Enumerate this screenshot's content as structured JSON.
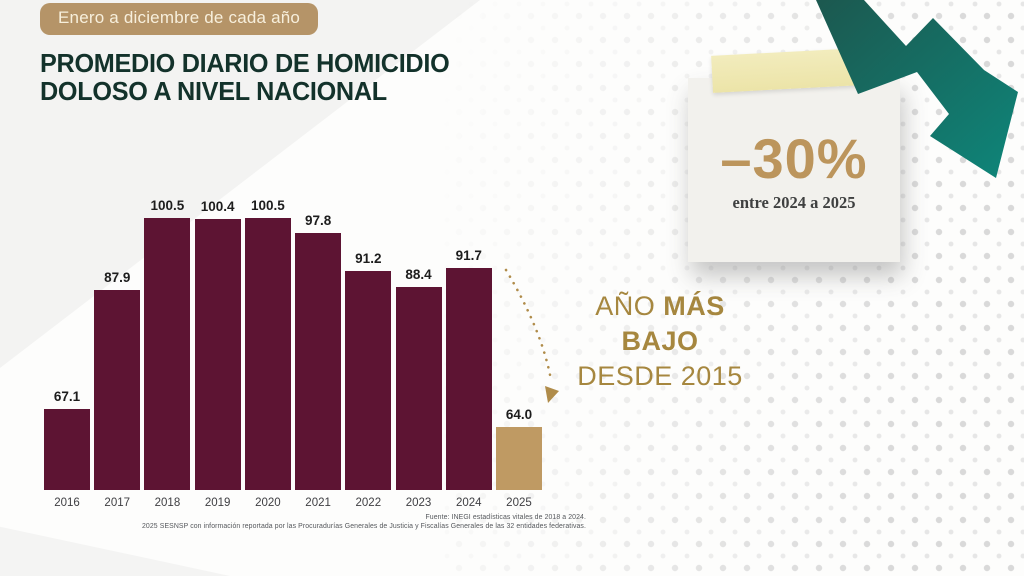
{
  "badge": {
    "label": "Enero a diciembre de cada año"
  },
  "title": {
    "line1": "PROMEDIO DIARIO DE HOMICIDIO",
    "line2": "DOLOSO A NIVEL NACIONAL"
  },
  "chart_data": {
    "type": "bar",
    "title": "Promedio diario de homicidio doloso a nivel nacional",
    "categories": [
      "2016",
      "2017",
      "2018",
      "2019",
      "2020",
      "2021",
      "2022",
      "2023",
      "2024",
      "2025"
    ],
    "values": [
      67.1,
      87.9,
      100.5,
      100.4,
      100.5,
      97.8,
      91.2,
      88.4,
      91.7,
      64.0
    ],
    "labels": [
      "67.1",
      "87.9",
      "100.5",
      "100.4",
      "100.5",
      "97.8",
      "91.2",
      "88.4",
      "91.7",
      "64.0"
    ],
    "xlabel": "",
    "ylabel": "",
    "ylim_visual": [
      52.9,
      100.5
    ],
    "grid": false,
    "legend": false,
    "value_labels": true,
    "bar_color": "#5d1433",
    "highlight_color": "#bf9a63",
    "highlight_index": 9,
    "annotation": "dotted arrow from 2024 bar down to 2025 bar"
  },
  "note": {
    "value": "–30%",
    "caption": "entre 2024 a 2025"
  },
  "callout": {
    "pre1": "AÑO",
    "bold1": " MÁS",
    "bold2": "BAJO",
    "line3": "DESDE 2015"
  },
  "source": {
    "line1": "Fuente: INEGI estadísticas vitales de 2018 a 2024.",
    "line2": "2025 SESNSP con información reportada por las Procuradurías Generales de Justicia y Fiscalías Generales de las 32 entidades federativas."
  },
  "icons": {
    "trend_down_arrow": "zigzag-arrow-down-right",
    "tape": "masking-tape",
    "dotted_decline_arrow": "curved-dotted-arrow"
  },
  "colors": {
    "guinda": "#5d1433",
    "gold": "#bf9a63",
    "gold_text": "#a6873f",
    "title_green": "#13322b",
    "teal_dark": "#1c584f",
    "teal_light": "#0e867a",
    "badge_bg": "#b59468",
    "badge_text": "#f7efdc",
    "note_bg": "#f2f1ed",
    "note_accent": "#bc955c",
    "note_caption": "#3f4040",
    "tape": "#efe8b0",
    "source_text": "#55585c",
    "dot": "#d9d9d9",
    "value_label": "#1d1d1d",
    "year_label": "#3e3e42"
  }
}
